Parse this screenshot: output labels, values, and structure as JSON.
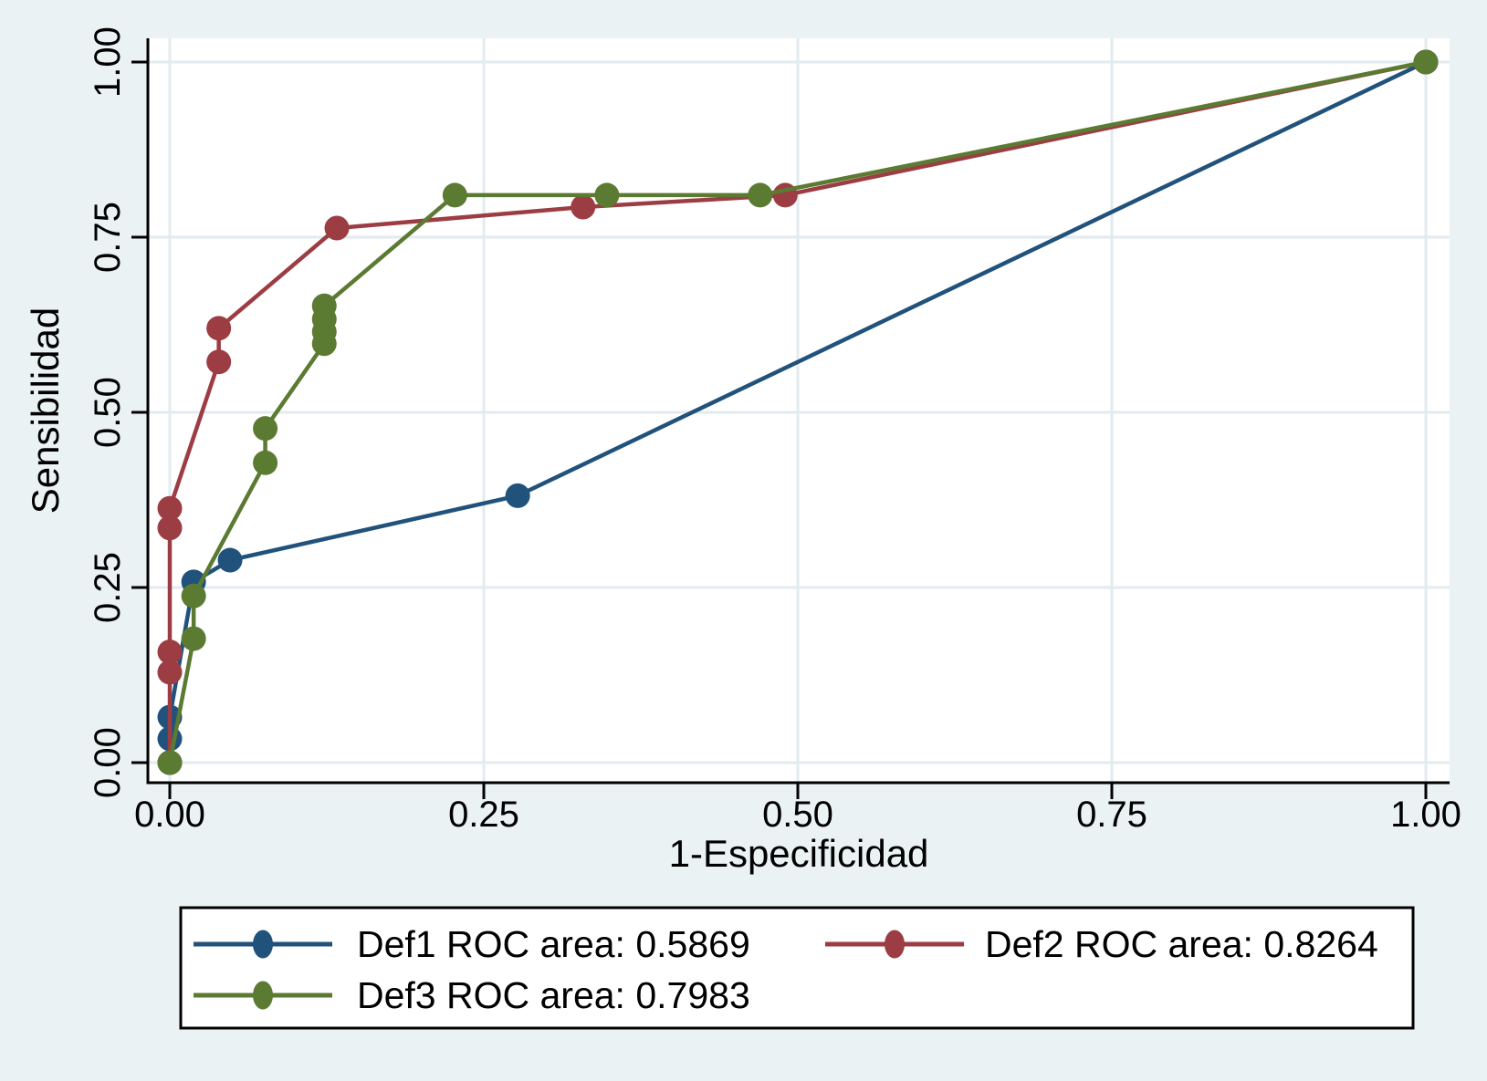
{
  "chart_data": {
    "type": "line",
    "title": "",
    "xlabel": "1-Especificidad",
    "ylabel": "Sensibilidad",
    "xlim": [
      0,
      1
    ],
    "ylim": [
      0,
      1
    ],
    "grid": true,
    "legend_position": "bottom",
    "x_ticks": {
      "values": [
        0,
        0.25,
        0.5,
        0.75,
        1
      ],
      "labels": [
        "0.00",
        "0.25",
        "0.50",
        "0.75",
        "1.00"
      ]
    },
    "y_ticks": {
      "values": [
        0,
        0.25,
        0.5,
        0.75,
        1
      ],
      "labels": [
        "0.00",
        "0.25",
        "0.50",
        "0.75",
        "1.00"
      ]
    },
    "series": [
      {
        "name": "Def1",
        "label": "Def1 ROC area: 0.5869",
        "roc_area": "0.5869",
        "color": "#21527C",
        "points": [
          [
            0,
            0
          ],
          [
            0,
            0.034
          ],
          [
            0,
            0.065
          ],
          [
            0.019,
            0.258
          ],
          [
            0.048,
            0.289
          ],
          [
            0.277,
            0.381
          ],
          [
            1,
            1
          ]
        ]
      },
      {
        "name": "Def2",
        "label": "Def2 ROC area: 0.8264",
        "roc_area": "0.8264",
        "color": "#9C3D43",
        "points": [
          [
            0,
            0
          ],
          [
            0,
            0.129
          ],
          [
            0,
            0.158
          ],
          [
            0,
            0.335
          ],
          [
            0,
            0.363
          ],
          [
            0.039,
            0.572
          ],
          [
            0.039,
            0.62
          ],
          [
            0.133,
            0.763
          ],
          [
            0.329,
            0.793
          ],
          [
            0.49,
            0.81
          ],
          [
            1,
            1
          ]
        ]
      },
      {
        "name": "Def3",
        "label": "Def3 ROC area: 0.7983",
        "roc_area": "0.7983",
        "color": "#5B7A32",
        "points": [
          [
            0,
            0
          ],
          [
            0.019,
            0.177
          ],
          [
            0.019,
            0.238
          ],
          [
            0.076,
            0.428
          ],
          [
            0.076,
            0.477
          ],
          [
            0.123,
            0.598
          ],
          [
            0.123,
            0.615
          ],
          [
            0.123,
            0.633
          ],
          [
            0.123,
            0.652
          ],
          [
            0.227,
            0.81
          ],
          [
            0.348,
            0.81
          ],
          [
            0.47,
            0.81
          ],
          [
            1,
            1
          ]
        ]
      }
    ],
    "colors": {
      "background": "#EAF2F3",
      "plot_background": "#FFFFFF",
      "gridline": "#E2EBEF",
      "axis": "#000000",
      "legend_background": "#FFFFFF",
      "legend_border": "#000000"
    }
  }
}
